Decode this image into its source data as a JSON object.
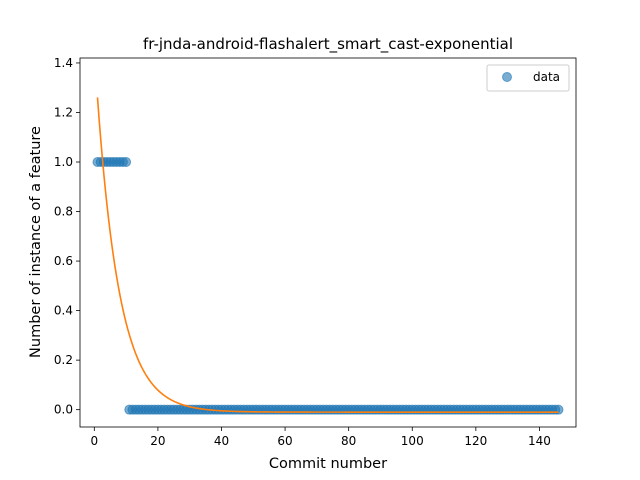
{
  "chart_data": {
    "type": "scatter",
    "title": "fr-jnda-android-flashalert_smart_cast-exponential",
    "xlabel": "Commit number",
    "ylabel": "Number of instance of a feature",
    "xlim": [
      -4.5,
      151.5
    ],
    "ylim": [
      -0.07,
      1.42
    ],
    "xticks": [
      0,
      20,
      40,
      60,
      80,
      100,
      120,
      140
    ],
    "xtick_labels": [
      "0",
      "20",
      "40",
      "60",
      "80",
      "100",
      "120",
      "140"
    ],
    "yticks": [
      0.0,
      0.2,
      0.4,
      0.6,
      0.8,
      1.0,
      1.2,
      1.4
    ],
    "ytick_labels": [
      "0.0",
      "0.2",
      "0.4",
      "0.6",
      "0.8",
      "1.0",
      "1.2",
      "1.4"
    ],
    "grid": false,
    "legend": {
      "position": "top-right",
      "entries": [
        "data"
      ]
    },
    "series": [
      {
        "name": "data",
        "kind": "points",
        "color": "#1f77b4",
        "segments": [
          {
            "x_from": 1,
            "x_to": 10,
            "y": 1
          },
          {
            "x_from": 11,
            "x_to": 146,
            "y": 0
          }
        ]
      },
      {
        "kind": "fit-curve",
        "color": "#ff7f0e",
        "model": "exponential",
        "a": 1.4615,
        "b": 0.14,
        "c": -0.01,
        "x_from": 1,
        "x_to": 146
      }
    ]
  }
}
